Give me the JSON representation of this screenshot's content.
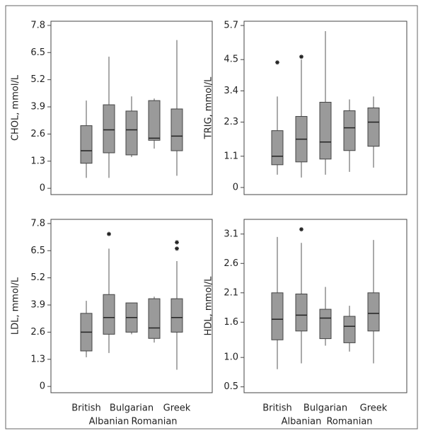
{
  "chart_data": [
    {
      "type": "box",
      "ylabel": "CHOL, mmol/L",
      "ylim": [
        -0.3,
        8.0
      ],
      "yticks": [
        0,
        1.3,
        2.6,
        3.9,
        5.2,
        6.5,
        7.8
      ],
      "color": "#9a9a9a",
      "boxes": [
        {
          "min": 0.5,
          "q1": 1.2,
          "median": 1.8,
          "q3": 3.0,
          "max": 4.2
        },
        {
          "min": 0.5,
          "q1": 1.7,
          "median": 2.8,
          "q3": 4.0,
          "max": 6.3
        },
        {
          "min": 1.5,
          "q1": 1.6,
          "median": 2.8,
          "q3": 3.7,
          "max": 4.4
        },
        {
          "min": 1.9,
          "q1": 2.3,
          "median": 2.4,
          "q3": 4.2,
          "max": 4.3
        },
        {
          "min": 0.6,
          "q1": 1.8,
          "median": 2.5,
          "q3": 3.8,
          "max": 7.1
        }
      ]
    },
    {
      "type": "box",
      "ylabel": "TRIG, mmol/L",
      "ylim": [
        -0.25,
        5.85
      ],
      "yticks": [
        0,
        1.1,
        2.3,
        3.4,
        4.5,
        5.7
      ],
      "color": "#9a9a9a",
      "boxes": [
        {
          "min": 0.45,
          "q1": 0.8,
          "median": 1.1,
          "q3": 2.0,
          "max": 3.2,
          "outliers": [
            4.4
          ]
        },
        {
          "min": 0.35,
          "q1": 0.9,
          "median": 1.7,
          "q3": 2.5,
          "max": 4.5,
          "outliers": [
            4.6
          ]
        },
        {
          "min": 0.45,
          "q1": 1.0,
          "median": 1.6,
          "q3": 3.0,
          "max": 5.5
        },
        {
          "min": 0.55,
          "q1": 1.3,
          "median": 2.1,
          "q3": 2.7,
          "max": 3.1
        },
        {
          "min": 0.7,
          "q1": 1.45,
          "median": 2.3,
          "q3": 2.8,
          "max": 3.2
        }
      ]
    },
    {
      "type": "box",
      "ylabel": "LDL, mmol/L",
      "ylim": [
        -0.3,
        8.0
      ],
      "yticks": [
        0,
        1.3,
        2.6,
        3.9,
        5.2,
        6.5,
        7.8
      ],
      "color": "#9a9a9a",
      "categories": [
        "British",
        "Albanian",
        "Bulgarian",
        "Romanian",
        "Greek"
      ],
      "boxes": [
        {
          "min": 1.4,
          "q1": 1.7,
          "median": 2.6,
          "q3": 3.5,
          "max": 4.1
        },
        {
          "min": 1.6,
          "q1": 2.5,
          "median": 3.3,
          "q3": 4.4,
          "max": 6.6,
          "outliers": [
            7.3
          ]
        },
        {
          "min": 2.5,
          "q1": 2.6,
          "median": 3.3,
          "q3": 4.0,
          "max": 4.0
        },
        {
          "min": 2.1,
          "q1": 2.3,
          "median": 2.8,
          "q3": 4.2,
          "max": 4.3
        },
        {
          "min": 0.8,
          "q1": 2.6,
          "median": 3.3,
          "q3": 4.2,
          "max": 6.0,
          "outliers": [
            6.6,
            6.9
          ]
        }
      ]
    },
    {
      "type": "box",
      "ylabel": "HDL, mmol/L",
      "ylim": [
        0.4,
        3.35
      ],
      "yticks": [
        0.5,
        {
          "value": 1,
          "label": "1.0"
        },
        1.6,
        2.1,
        2.6,
        3.1
      ],
      "color": "#9a9a9a",
      "categories": [
        "British",
        "Albanian",
        "Bulgarian",
        "Romanian",
        "Greek"
      ],
      "boxes": [
        {
          "min": 0.8,
          "q1": 1.3,
          "median": 1.65,
          "q3": 2.1,
          "max": 3.05
        },
        {
          "min": 0.9,
          "q1": 1.45,
          "median": 1.72,
          "q3": 2.08,
          "max": 2.95,
          "outliers": [
            3.18
          ]
        },
        {
          "min": 1.2,
          "q1": 1.32,
          "median": 1.67,
          "q3": 1.82,
          "max": 2.2
        },
        {
          "min": 1.1,
          "q1": 1.25,
          "median": 1.53,
          "q3": 1.7,
          "max": 1.88
        },
        {
          "min": 0.9,
          "q1": 1.45,
          "median": 1.75,
          "q3": 2.1,
          "max": 3.0
        }
      ]
    }
  ]
}
